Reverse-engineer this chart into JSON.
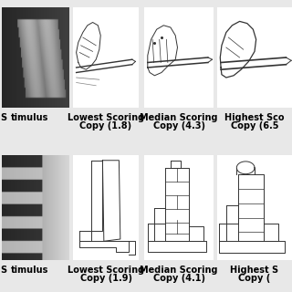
{
  "background_color": "#e8e8e8",
  "sketch_color": "#333333",
  "label_fontsize": 7.0,
  "label_fontweight": "bold",
  "fig_width": 3.2,
  "fig_height": 3.2,
  "row1_col1_label1": "Lowest Scoring",
  "row1_col1_label2": "Copy (1.8)",
  "row1_col2_label1": "Median Scoring",
  "row1_col2_label2": "Copy (4.3)",
  "row1_col3_label1": "Highest Sco",
  "row1_col3_label2": "Copy (6.5",
  "row2_col1_label1": "Lowest Scoring",
  "row2_col1_label2": "Copy (1.9)",
  "row2_col2_label1": "Median Scoring",
  "row2_col2_label2": "Copy (4.1)",
  "row2_col3_label1": "Highest S",
  "row2_col3_label2": "Copy (",
  "row1_col0_label": "timulus",
  "row2_col0_label": "timulus"
}
